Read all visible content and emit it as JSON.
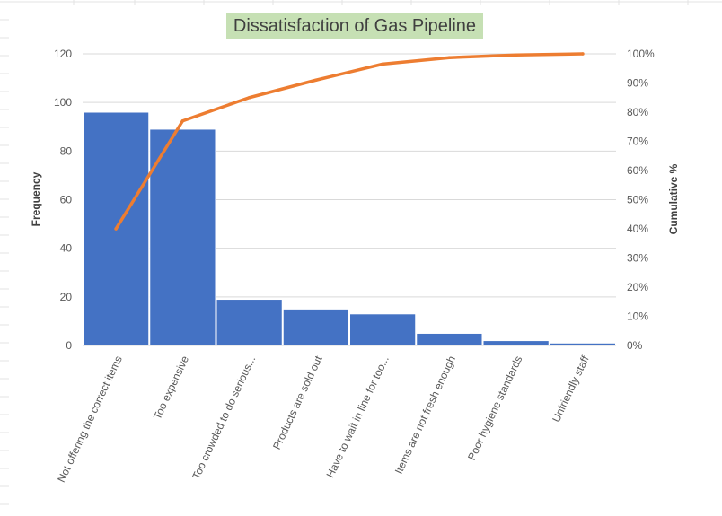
{
  "chart_data": {
    "type": "bar",
    "title": "Dissatisfaction of Gas Pipeline",
    "xlabel": "",
    "ylabel": "Frequency",
    "y2label": "Cumulative %",
    "categories": [
      "Not offering the correct items",
      "Too expensive",
      "Too crowded to do serious...",
      "Products are sold out",
      "Have to wait in line for too...",
      "Items are not fresh enough",
      "Poor hygiene standards",
      "Unfriendly staff"
    ],
    "series": [
      {
        "type": "bar",
        "values": [
          96,
          89,
          19,
          15,
          13,
          5,
          2,
          1
        ]
      },
      {
        "type": "line",
        "axis": "secondary",
        "values": [
          40,
          77,
          85,
          91,
          96.5,
          98.7,
          99.6,
          100
        ]
      }
    ],
    "ylim": [
      0,
      120
    ],
    "y_ticks": [
      "0",
      "20",
      "40",
      "60",
      "80",
      "100",
      "120"
    ],
    "y2lim": [
      0,
      100
    ],
    "y2_ticks": [
      "0%",
      "10%",
      "20%",
      "30%",
      "40%",
      "50%",
      "60%",
      "70%",
      "80%",
      "90%",
      "100%"
    ],
    "grid": true,
    "legend": "none",
    "colors": {
      "bar": "#4472c4",
      "line": "#ed7d31",
      "title_bg": "#c6e0b4"
    }
  }
}
